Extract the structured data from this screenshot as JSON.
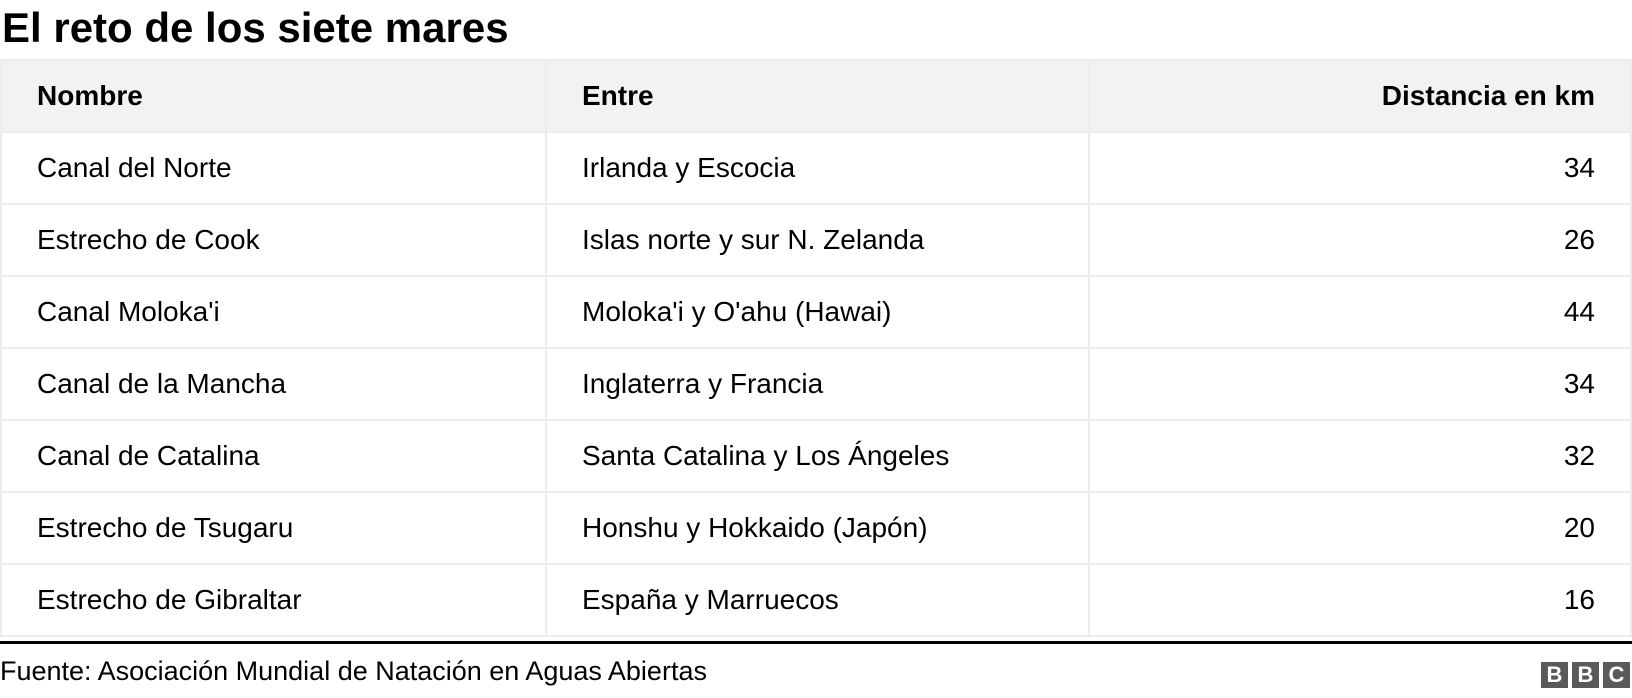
{
  "title": "El reto de los siete mares",
  "chart_data": {
    "type": "table",
    "title": "El reto de los siete mares",
    "columns": [
      "Nombre",
      "Entre",
      "Distancia en km"
    ],
    "rows": [
      [
        "Canal del Norte",
        "Irlanda y Escocia",
        "34"
      ],
      [
        "Estrecho de Cook",
        "Islas norte y sur N. Zelanda",
        "26"
      ],
      [
        "Canal Moloka'i",
        "Moloka'i y O'ahu (Hawai)",
        "44"
      ],
      [
        "Canal de la Mancha",
        "Inglaterra y Francia",
        "34"
      ],
      [
        "Canal de Catalina",
        "Santa Catalina y Los Ángeles",
        "32"
      ],
      [
        "Estrecho de Tsugaru",
        "Honshu y Hokkaido (Japón)",
        "20"
      ],
      [
        "Estrecho de Gibraltar",
        "España y Marruecos",
        "16"
      ]
    ],
    "header_background": "#f2f2f2",
    "border_color": "#ececec"
  },
  "footer": {
    "source": "Fuente: Asociación Mundial de Natación en Aguas Abiertas",
    "logo": "BBC",
    "logo_color": "#5a5a5a"
  }
}
